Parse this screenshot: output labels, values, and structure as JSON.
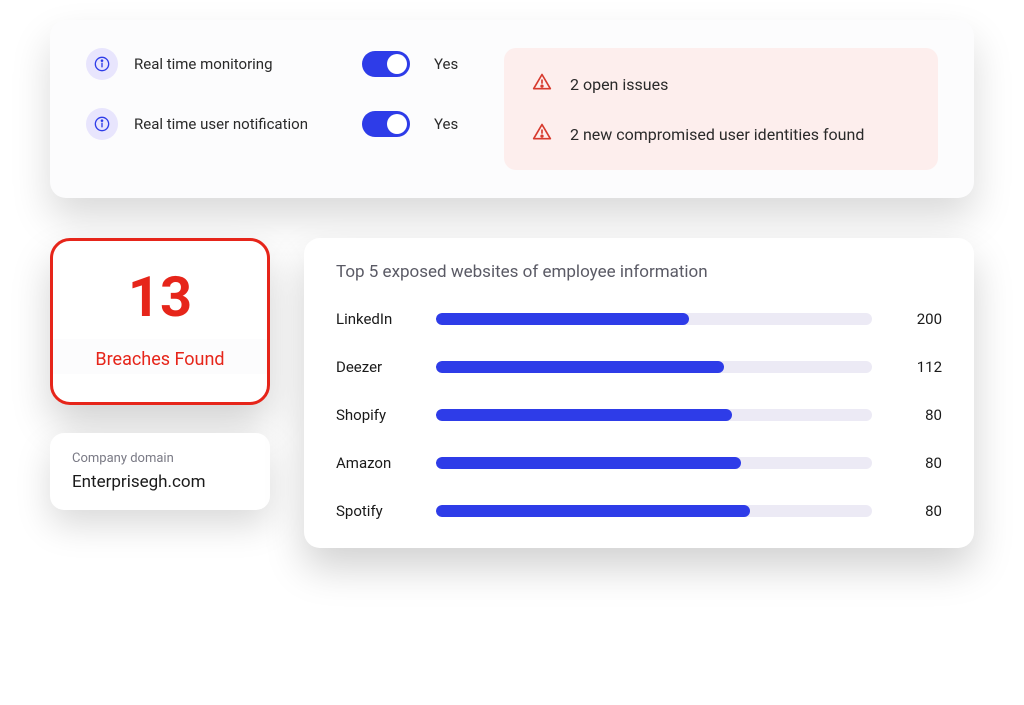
{
  "colors": {
    "accent_blue": "#2e3ce8",
    "alert_red": "#d73a2e",
    "alert_bg": "#fdeeed",
    "breach_red": "#e6251a",
    "info_icon_bg": "#e8e5fd",
    "bar_track": "#eceaf5",
    "card_bg": "#ffffff",
    "top_card_bg": "#fcfcfd"
  },
  "settings": {
    "monitoring": {
      "label": "Real time monitoring",
      "value": "Yes",
      "on": true
    },
    "notification": {
      "label": "Real time user notification",
      "value": "Yes",
      "on": true
    }
  },
  "alerts": [
    {
      "text": "2 open issues"
    },
    {
      "text": "2 new compromised user identities found"
    }
  ],
  "breaches": {
    "count": "13",
    "label": "Breaches Found"
  },
  "domain": {
    "label": "Company domain",
    "value": "Enterprisegh.com"
  },
  "chart": {
    "type": "bar",
    "title": "Top 5 exposed websites of employee information",
    "bar_color": "#2e3ce8",
    "track_color": "#eceaf5",
    "max_value": 220,
    "items": [
      {
        "name": "LinkedIn",
        "value": 200,
        "pct": 58
      },
      {
        "name": "Deezer",
        "value": 112,
        "pct": 66
      },
      {
        "name": "Shopify",
        "value": 80,
        "pct": 68
      },
      {
        "name": "Amazon",
        "value": 80,
        "pct": 70
      },
      {
        "name": "Spotify",
        "value": 80,
        "pct": 72
      }
    ]
  }
}
